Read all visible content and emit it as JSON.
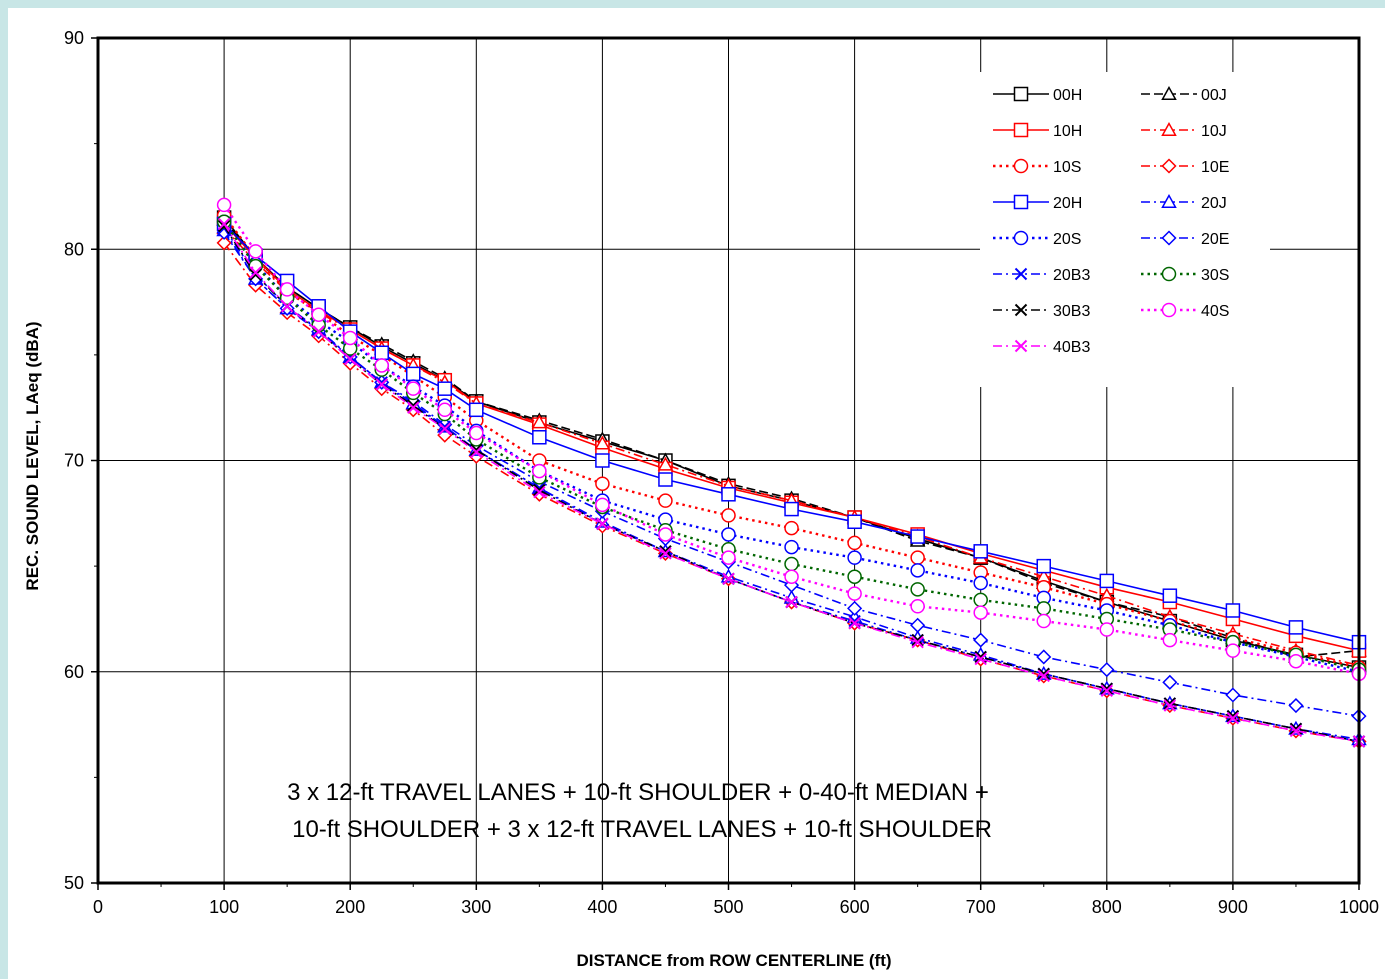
{
  "chart_data": {
    "type": "line",
    "title": "",
    "xlabel": "DISTANCE from ROW CENTERLINE (ft)",
    "ylabel": "REC. SOUND LEVEL, LAeq (dBA)",
    "xlim": [
      0,
      1000
    ],
    "ylim": [
      50,
      90
    ],
    "x_ticks": [
      0,
      100,
      200,
      300,
      400,
      500,
      600,
      700,
      800,
      900,
      1000
    ],
    "y_ticks": [
      50,
      60,
      70,
      80,
      90
    ],
    "grid": true,
    "legend_position": "top-right",
    "annotation": [
      "3 x 12-ft TRAVEL LANES + 10-ft SHOULDER + 0-40-ft MEDIAN +",
      "10-ft SHOULDER + 3 x 12-ft TRAVEL LANES + 10-ft SHOULDER"
    ],
    "x": [
      100,
      125,
      150,
      175,
      200,
      225,
      250,
      275,
      300,
      350,
      400,
      450,
      500,
      550,
      600,
      650,
      700,
      750,
      800,
      850,
      900,
      950,
      1000
    ],
    "series": [
      {
        "name": "00H",
        "color": "#000000",
        "dash": "solid",
        "marker": "square",
        "values": [
          81.5,
          79.6,
          78.2,
          77.2,
          76.3,
          75.4,
          74.6,
          73.8,
          72.8,
          71.8,
          70.9,
          70.0,
          68.8,
          68.1,
          67.3,
          66.3,
          65.4,
          64.3,
          63.3,
          62.4,
          61.5,
          60.8,
          60.2
        ]
      },
      {
        "name": "00J",
        "color": "#000000",
        "dash": "dash",
        "marker": "triangle",
        "values": [
          81.4,
          79.5,
          78.2,
          77.2,
          76.3,
          75.5,
          74.7,
          73.9,
          72.8,
          71.9,
          71.0,
          70.0,
          68.9,
          68.2,
          67.3,
          66.2,
          65.4,
          64.2,
          63.3,
          62.6,
          61.6,
          60.7,
          61.0
        ]
      },
      {
        "name": "10H",
        "color": "#ff0000",
        "dash": "solid",
        "marker": "square",
        "values": [
          81.2,
          79.6,
          78.1,
          77.1,
          76.2,
          75.3,
          74.5,
          73.8,
          72.7,
          71.7,
          70.6,
          69.6,
          68.7,
          68.0,
          67.3,
          66.5,
          65.6,
          64.8,
          64.0,
          63.3,
          62.5,
          61.7,
          61.0
        ]
      },
      {
        "name": "10J",
        "color": "#ff0000",
        "dash": "dashdot",
        "marker": "triangle",
        "values": [
          81.0,
          79.4,
          78.0,
          77.0,
          76.2,
          75.3,
          74.5,
          73.7,
          72.7,
          71.8,
          70.8,
          69.8,
          68.8,
          68.1,
          67.3,
          66.4,
          65.4,
          64.5,
          63.6,
          62.6,
          61.8,
          61.0,
          60.3
        ]
      },
      {
        "name": "10S",
        "color": "#ff0000",
        "dash": "dot",
        "marker": "circle",
        "values": [
          81.6,
          79.6,
          78.0,
          77.0,
          75.9,
          75.0,
          74.0,
          73.0,
          71.9,
          70.0,
          68.9,
          68.1,
          67.4,
          66.8,
          66.1,
          65.4,
          64.7,
          64.0,
          63.2,
          62.4,
          61.6,
          60.9,
          60.2
        ]
      },
      {
        "name": "10E",
        "color": "#ff0000",
        "dash": "dashdot",
        "marker": "diamond",
        "values": [
          80.3,
          78.3,
          77.0,
          75.9,
          74.6,
          73.4,
          72.4,
          71.2,
          70.2,
          68.4,
          66.9,
          65.6,
          64.4,
          63.3,
          62.3,
          61.5,
          60.6,
          59.8,
          59.1,
          58.4,
          57.8,
          57.2,
          56.7
        ]
      },
      {
        "name": "20H",
        "color": "#0000ff",
        "dash": "solid",
        "marker": "square",
        "values": [
          81.2,
          79.7,
          78.5,
          77.3,
          76.1,
          75.1,
          74.1,
          73.4,
          72.4,
          71.1,
          70.0,
          69.1,
          68.4,
          67.7,
          67.1,
          66.4,
          65.7,
          65.0,
          64.3,
          63.6,
          62.9,
          62.1,
          61.4
        ]
      },
      {
        "name": "20J",
        "color": "#0000ff",
        "dash": "dashdot",
        "marker": "triangle",
        "values": [
          80.9,
          78.6,
          77.2,
          76.2,
          74.9,
          73.7,
          72.7,
          71.6,
          70.5,
          68.7,
          67.1,
          65.7,
          64.5,
          63.5,
          62.6,
          61.6,
          60.8,
          59.9,
          59.2,
          58.5,
          57.9,
          57.3,
          56.8
        ]
      },
      {
        "name": "20S",
        "color": "#0000ff",
        "dash": "dot",
        "marker": "circle",
        "values": [
          81.3,
          79.3,
          77.7,
          76.6,
          75.6,
          74.5,
          73.5,
          72.6,
          71.4,
          69.5,
          68.1,
          67.2,
          66.5,
          65.9,
          65.4,
          64.8,
          64.2,
          63.5,
          62.9,
          62.2,
          61.4,
          60.7,
          60.0
        ]
      },
      {
        "name": "20E",
        "color": "#0000ff",
        "dash": "dashdot",
        "marker": "diamond",
        "values": [
          80.8,
          78.6,
          77.2,
          76.1,
          74.9,
          73.7,
          72.8,
          71.7,
          70.7,
          69.0,
          67.6,
          66.3,
          65.2,
          64.1,
          63.0,
          62.2,
          61.5,
          60.7,
          60.1,
          59.5,
          58.9,
          58.4,
          57.9
        ]
      },
      {
        "name": "20B3",
        "color": "#0000ff",
        "dash": "dashdot",
        "marker": "x",
        "values": [
          81.0,
          78.8,
          77.3,
          76.2,
          74.9,
          73.7,
          72.6,
          71.6,
          70.5,
          68.7,
          67.0,
          65.7,
          64.4,
          63.3,
          62.4,
          61.5,
          60.7,
          59.9,
          59.2,
          58.5,
          57.9,
          57.3,
          56.7
        ]
      },
      {
        "name": "30S",
        "color": "#006600",
        "dash": "dot",
        "marker": "circle",
        "values": [
          81.3,
          79.2,
          77.7,
          76.4,
          75.3,
          74.3,
          73.2,
          72.2,
          71.0,
          69.2,
          67.8,
          66.7,
          65.8,
          65.1,
          64.5,
          63.9,
          63.4,
          63.0,
          62.5,
          62.0,
          61.4,
          60.8,
          60.1
        ]
      },
      {
        "name": "30B3",
        "color": "#000000",
        "dash": "dashdot",
        "marker": "x",
        "values": [
          81.1,
          78.8,
          77.3,
          76.1,
          74.8,
          73.6,
          72.6,
          71.5,
          70.5,
          68.6,
          67.0,
          65.7,
          64.4,
          63.3,
          62.3,
          61.5,
          60.7,
          59.9,
          59.2,
          58.5,
          57.9,
          57.3,
          56.7
        ]
      },
      {
        "name": "40S",
        "color": "#ff00ff",
        "dash": "dot",
        "marker": "circle",
        "values": [
          82.1,
          79.9,
          78.1,
          76.9,
          75.8,
          74.5,
          73.4,
          72.4,
          71.3,
          69.5,
          67.9,
          66.5,
          65.4,
          64.5,
          63.7,
          63.1,
          62.8,
          62.4,
          62.0,
          61.5,
          61.0,
          60.5,
          59.9
        ]
      },
      {
        "name": "40B3",
        "color": "#ff00ff",
        "dash": "dashdot",
        "marker": "x",
        "values": [
          81.2,
          78.9,
          77.3,
          76.1,
          74.8,
          73.6,
          72.5,
          71.5,
          70.4,
          68.5,
          67.0,
          65.6,
          64.4,
          63.3,
          62.3,
          61.4,
          60.6,
          59.8,
          59.1,
          58.4,
          57.8,
          57.2,
          56.7
        ]
      }
    ],
    "legend_order": [
      "00H",
      "00J",
      "10H",
      "10J",
      "10S",
      "10E",
      "20H",
      "20J",
      "20S",
      "20E",
      "20B3",
      "30S",
      "30B3",
      "40S",
      "40B3"
    ]
  }
}
